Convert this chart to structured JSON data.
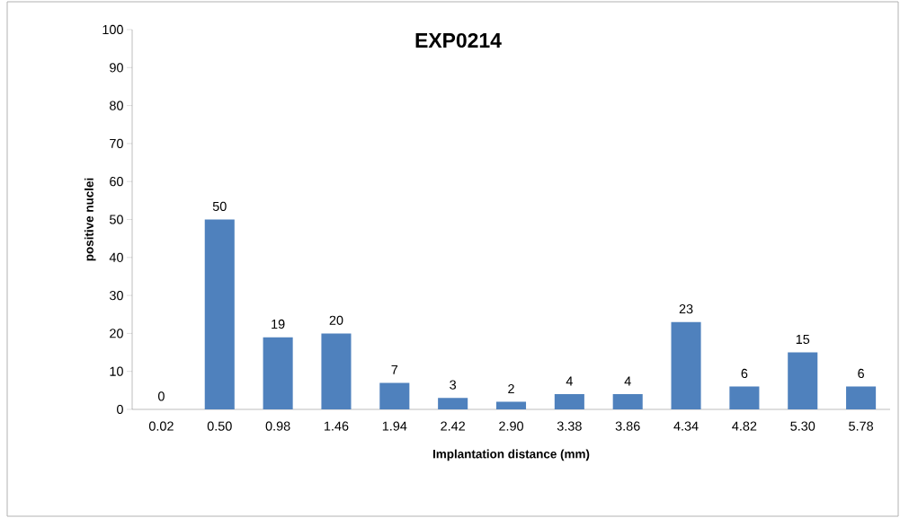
{
  "chart_data": {
    "type": "bar",
    "title": "EXP0214",
    "xlabel": "Implantation distance (mm)",
    "ylabel": "positive nuclei",
    "categories": [
      "0.02",
      "0.50",
      "0.98",
      "1.46",
      "1.94",
      "2.42",
      "2.90",
      "3.38",
      "3.86",
      "4.34",
      "4.82",
      "5.30",
      "5.78"
    ],
    "values": [
      0,
      50,
      19,
      20,
      7,
      3,
      2,
      4,
      4,
      23,
      6,
      15,
      6
    ],
    "color": "#4f81bd",
    "ylim": [
      0,
      100
    ],
    "yticks": [
      0,
      10,
      20,
      30,
      40,
      50,
      60,
      70,
      80,
      90,
      100
    ],
    "data_labels": true
  }
}
